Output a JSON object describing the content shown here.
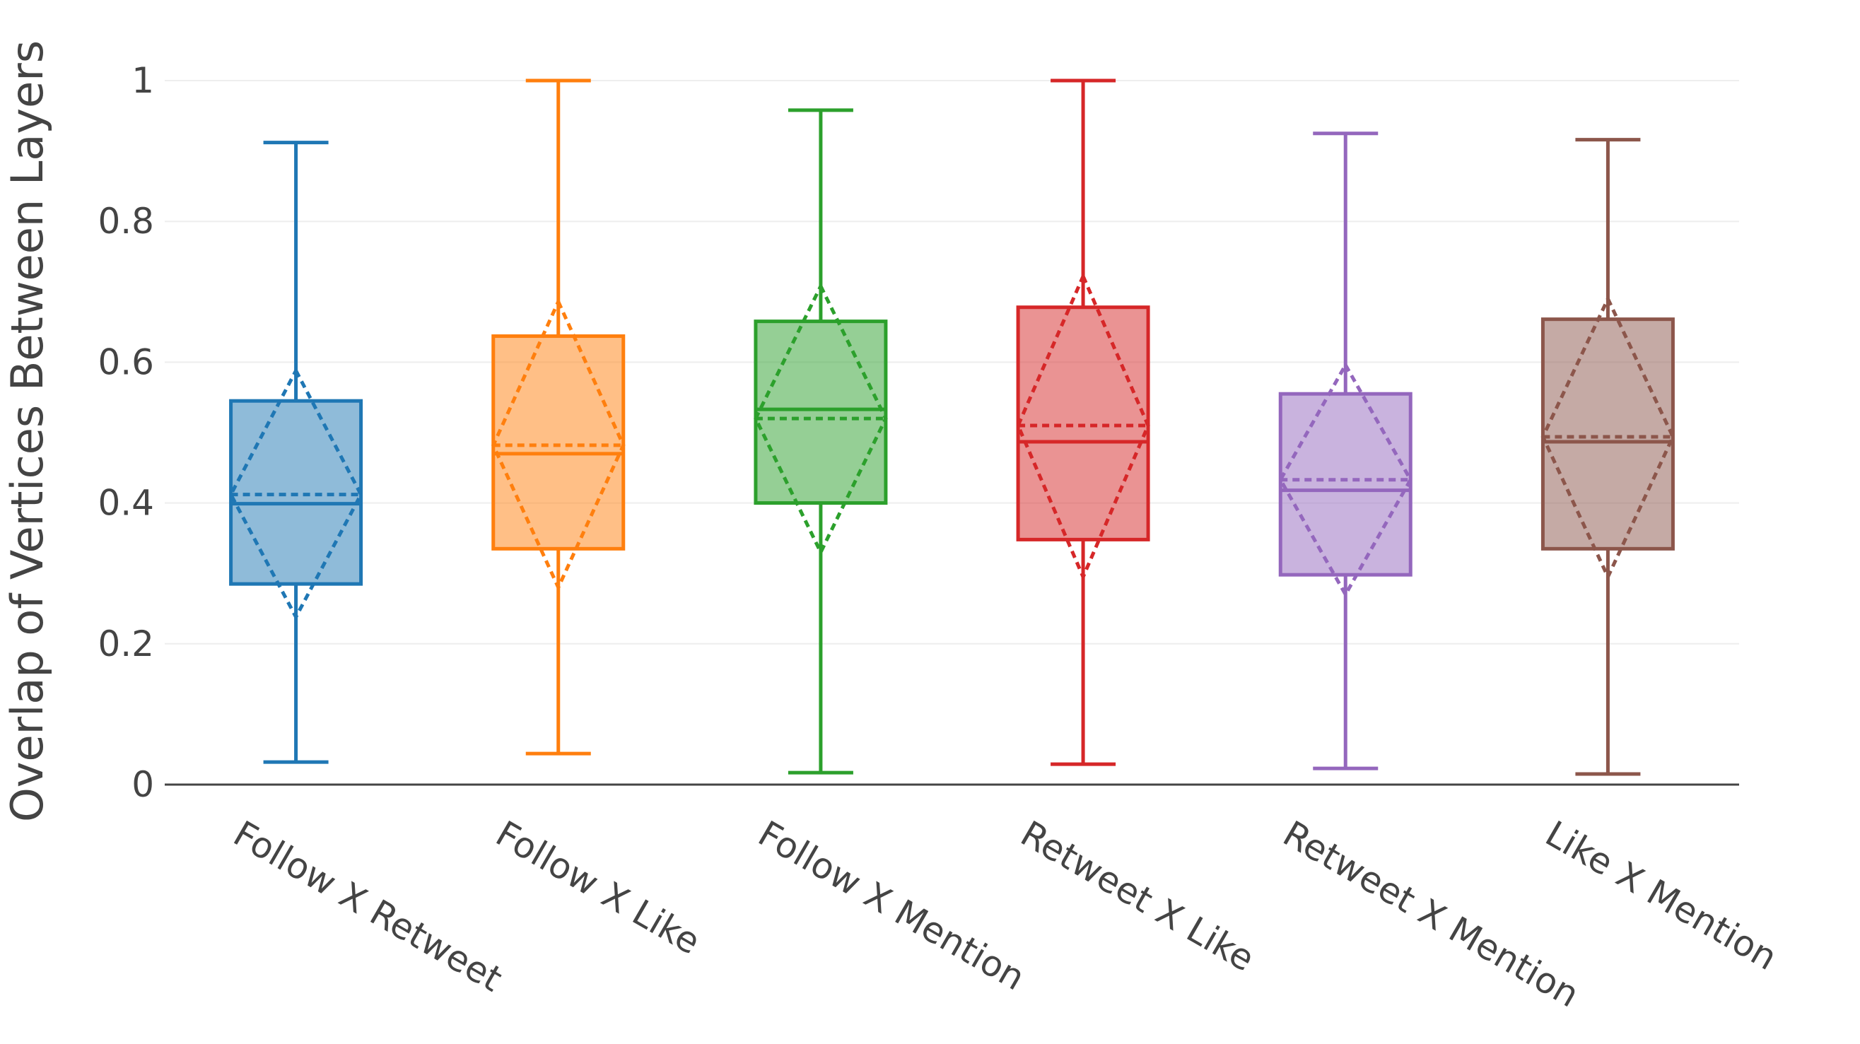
{
  "chart_data": {
    "type": "box",
    "title": "",
    "xlabel": "",
    "ylabel": "Overlap of Vertices Between Layers",
    "ylim": [
      0,
      1.05
    ],
    "yticks": [
      0,
      0.2,
      0.4,
      0.6,
      0.8,
      1
    ],
    "ytick_labels": [
      "0",
      "0.2",
      "0.4",
      "0.6",
      "0.8",
      "1"
    ],
    "grid": true,
    "legend": "none",
    "boxes": [
      {
        "category": "Follow X Retweet",
        "color": "#1f77b4",
        "min": 0.032,
        "q1": 0.285,
        "median": 0.399,
        "q3": 0.545,
        "max": 0.912,
        "mean": 0.412,
        "mean_minus_sd": 0.238,
        "mean_plus_sd": 0.588
      },
      {
        "category": "Follow X Like",
        "color": "#ff7f0e",
        "min": 0.044,
        "q1": 0.335,
        "median": 0.47,
        "q3": 0.637,
        "max": 1.0,
        "mean": 0.482,
        "mean_minus_sd": 0.28,
        "mean_plus_sd": 0.686
      },
      {
        "category": "Follow X Mention",
        "color": "#2ca02c",
        "min": 0.017,
        "q1": 0.4,
        "median": 0.533,
        "q3": 0.658,
        "max": 0.958,
        "mean": 0.52,
        "mean_minus_sd": 0.33,
        "mean_plus_sd": 0.708
      },
      {
        "category": "Retweet X Like",
        "color": "#d62728",
        "min": 0.029,
        "q1": 0.348,
        "median": 0.487,
        "q3": 0.678,
        "max": 1.0,
        "mean": 0.51,
        "mean_minus_sd": 0.295,
        "mean_plus_sd": 0.722
      },
      {
        "category": "Retweet X Mention",
        "color": "#9467bd",
        "min": 0.023,
        "q1": 0.298,
        "median": 0.418,
        "q3": 0.555,
        "max": 0.925,
        "mean": 0.433,
        "mean_minus_sd": 0.27,
        "mean_plus_sd": 0.596
      },
      {
        "category": "Like X Mention",
        "color": "#8c564b",
        "min": 0.015,
        "q1": 0.335,
        "median": 0.487,
        "q3": 0.661,
        "max": 0.916,
        "mean": 0.494,
        "mean_minus_sd": 0.295,
        "mean_plus_sd": 0.69
      }
    ]
  }
}
